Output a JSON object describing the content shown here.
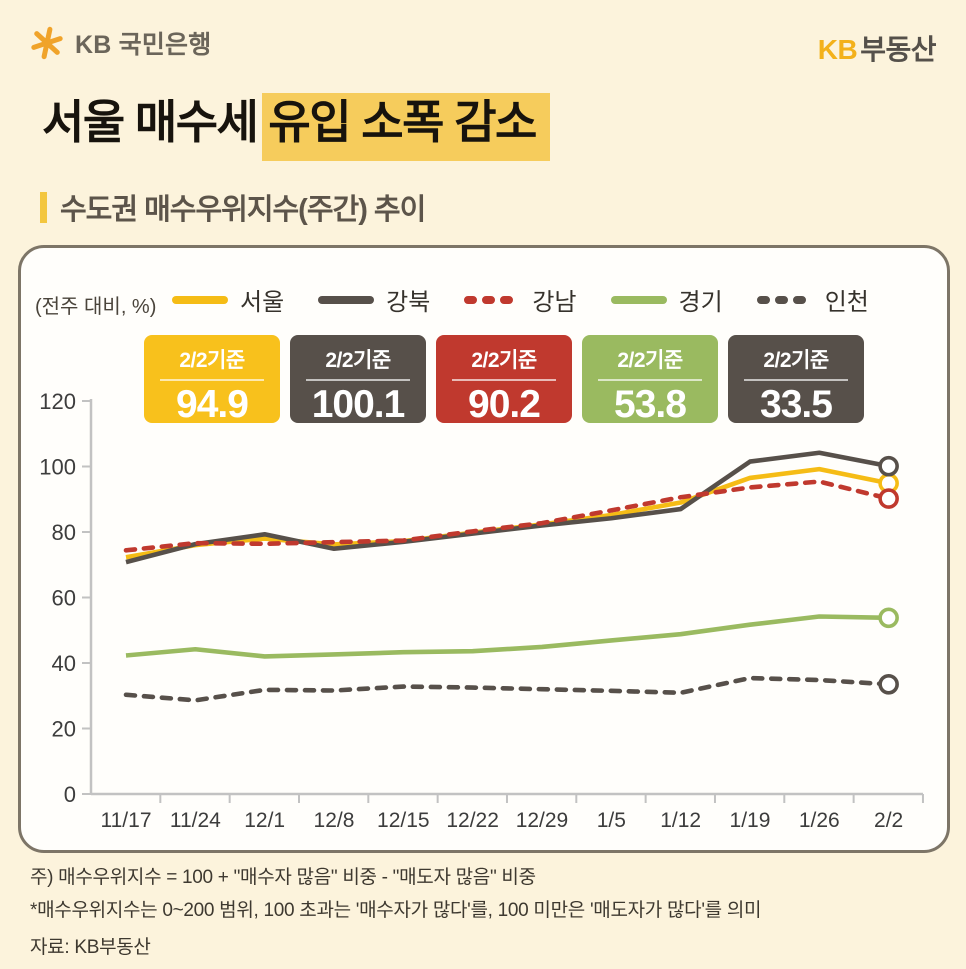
{
  "header": {
    "bank_name": "KB 국민은행",
    "brand_kb": "KB",
    "brand_rest": "부동산"
  },
  "title": {
    "lead": "서울 매수세",
    "highlight": "유입 소폭 감소"
  },
  "section_title": "수도권 매수우위지수(주간) 추이",
  "panel": {
    "unit_label": "(전주 대비, %)"
  },
  "badges": [
    {
      "label": "2/2기준",
      "value": "94.9",
      "color": "#f8c11c"
    },
    {
      "label": "2/2기준",
      "value": "100.1",
      "color": "#57504a"
    },
    {
      "label": "2/2기준",
      "value": "90.2",
      "color": "#c0392e"
    },
    {
      "label": "2/2기준",
      "value": "53.8",
      "color": "#9aba60"
    },
    {
      "label": "2/2기준",
      "value": "33.5",
      "color": "#57504a"
    }
  ],
  "chart_data": {
    "type": "line",
    "title": "수도권 매수우위지수(주간) 추이",
    "unit": "(전주 대비, %)",
    "x_labels": [
      "11/17",
      "11/24",
      "12/1",
      "12/8",
      "12/15",
      "12/22",
      "12/29",
      "1/5",
      "1/12",
      "1/19",
      "1/26",
      "2/2"
    ],
    "ylim": [
      0,
      120
    ],
    "ytick_step": 20,
    "grid": false,
    "legend_position": "top",
    "end_marker": "open-circle",
    "series": [
      {
        "name": "서울",
        "color": "#f5bc15",
        "dash": false,
        "values": [
          72.3,
          76.0,
          78.0,
          76.2,
          77.2,
          79.8,
          82.3,
          85.2,
          89.0,
          96.5,
          99.2,
          94.9
        ]
      },
      {
        "name": "강북",
        "color": "#57504a",
        "dash": false,
        "values": [
          70.8,
          76.3,
          79.3,
          74.9,
          77.0,
          79.5,
          82.0,
          84.2,
          87.0,
          101.5,
          104.2,
          100.1
        ]
      },
      {
        "name": "강남",
        "color": "#c0392e",
        "dash": true,
        "values": [
          74.4,
          76.6,
          76.4,
          76.9,
          77.4,
          80.2,
          82.7,
          86.6,
          90.6,
          93.6,
          95.4,
          90.2
        ]
      },
      {
        "name": "경기",
        "color": "#9aba60",
        "dash": false,
        "values": [
          42.3,
          44.2,
          42.0,
          42.6,
          43.3,
          43.6,
          44.9,
          46.9,
          48.8,
          51.7,
          54.2,
          53.8
        ]
      },
      {
        "name": "인천",
        "color": "#57504a",
        "dash": true,
        "values": [
          30.3,
          28.6,
          31.8,
          31.6,
          32.8,
          32.5,
          32.0,
          31.5,
          30.9,
          35.4,
          34.8,
          33.5
        ]
      }
    ]
  },
  "footnotes": {
    "note1": "주) 매수우위지수 = 100 + \"매수자 많음\" 비중 - \"매도자 많음\" 비중",
    "note2": "*매수우위지수는 0~200 범위, 100 초과는 '매수자가 많다'를, 100 미만은 '매도자가 많다'를 의미",
    "source": "자료: KB부동산"
  }
}
